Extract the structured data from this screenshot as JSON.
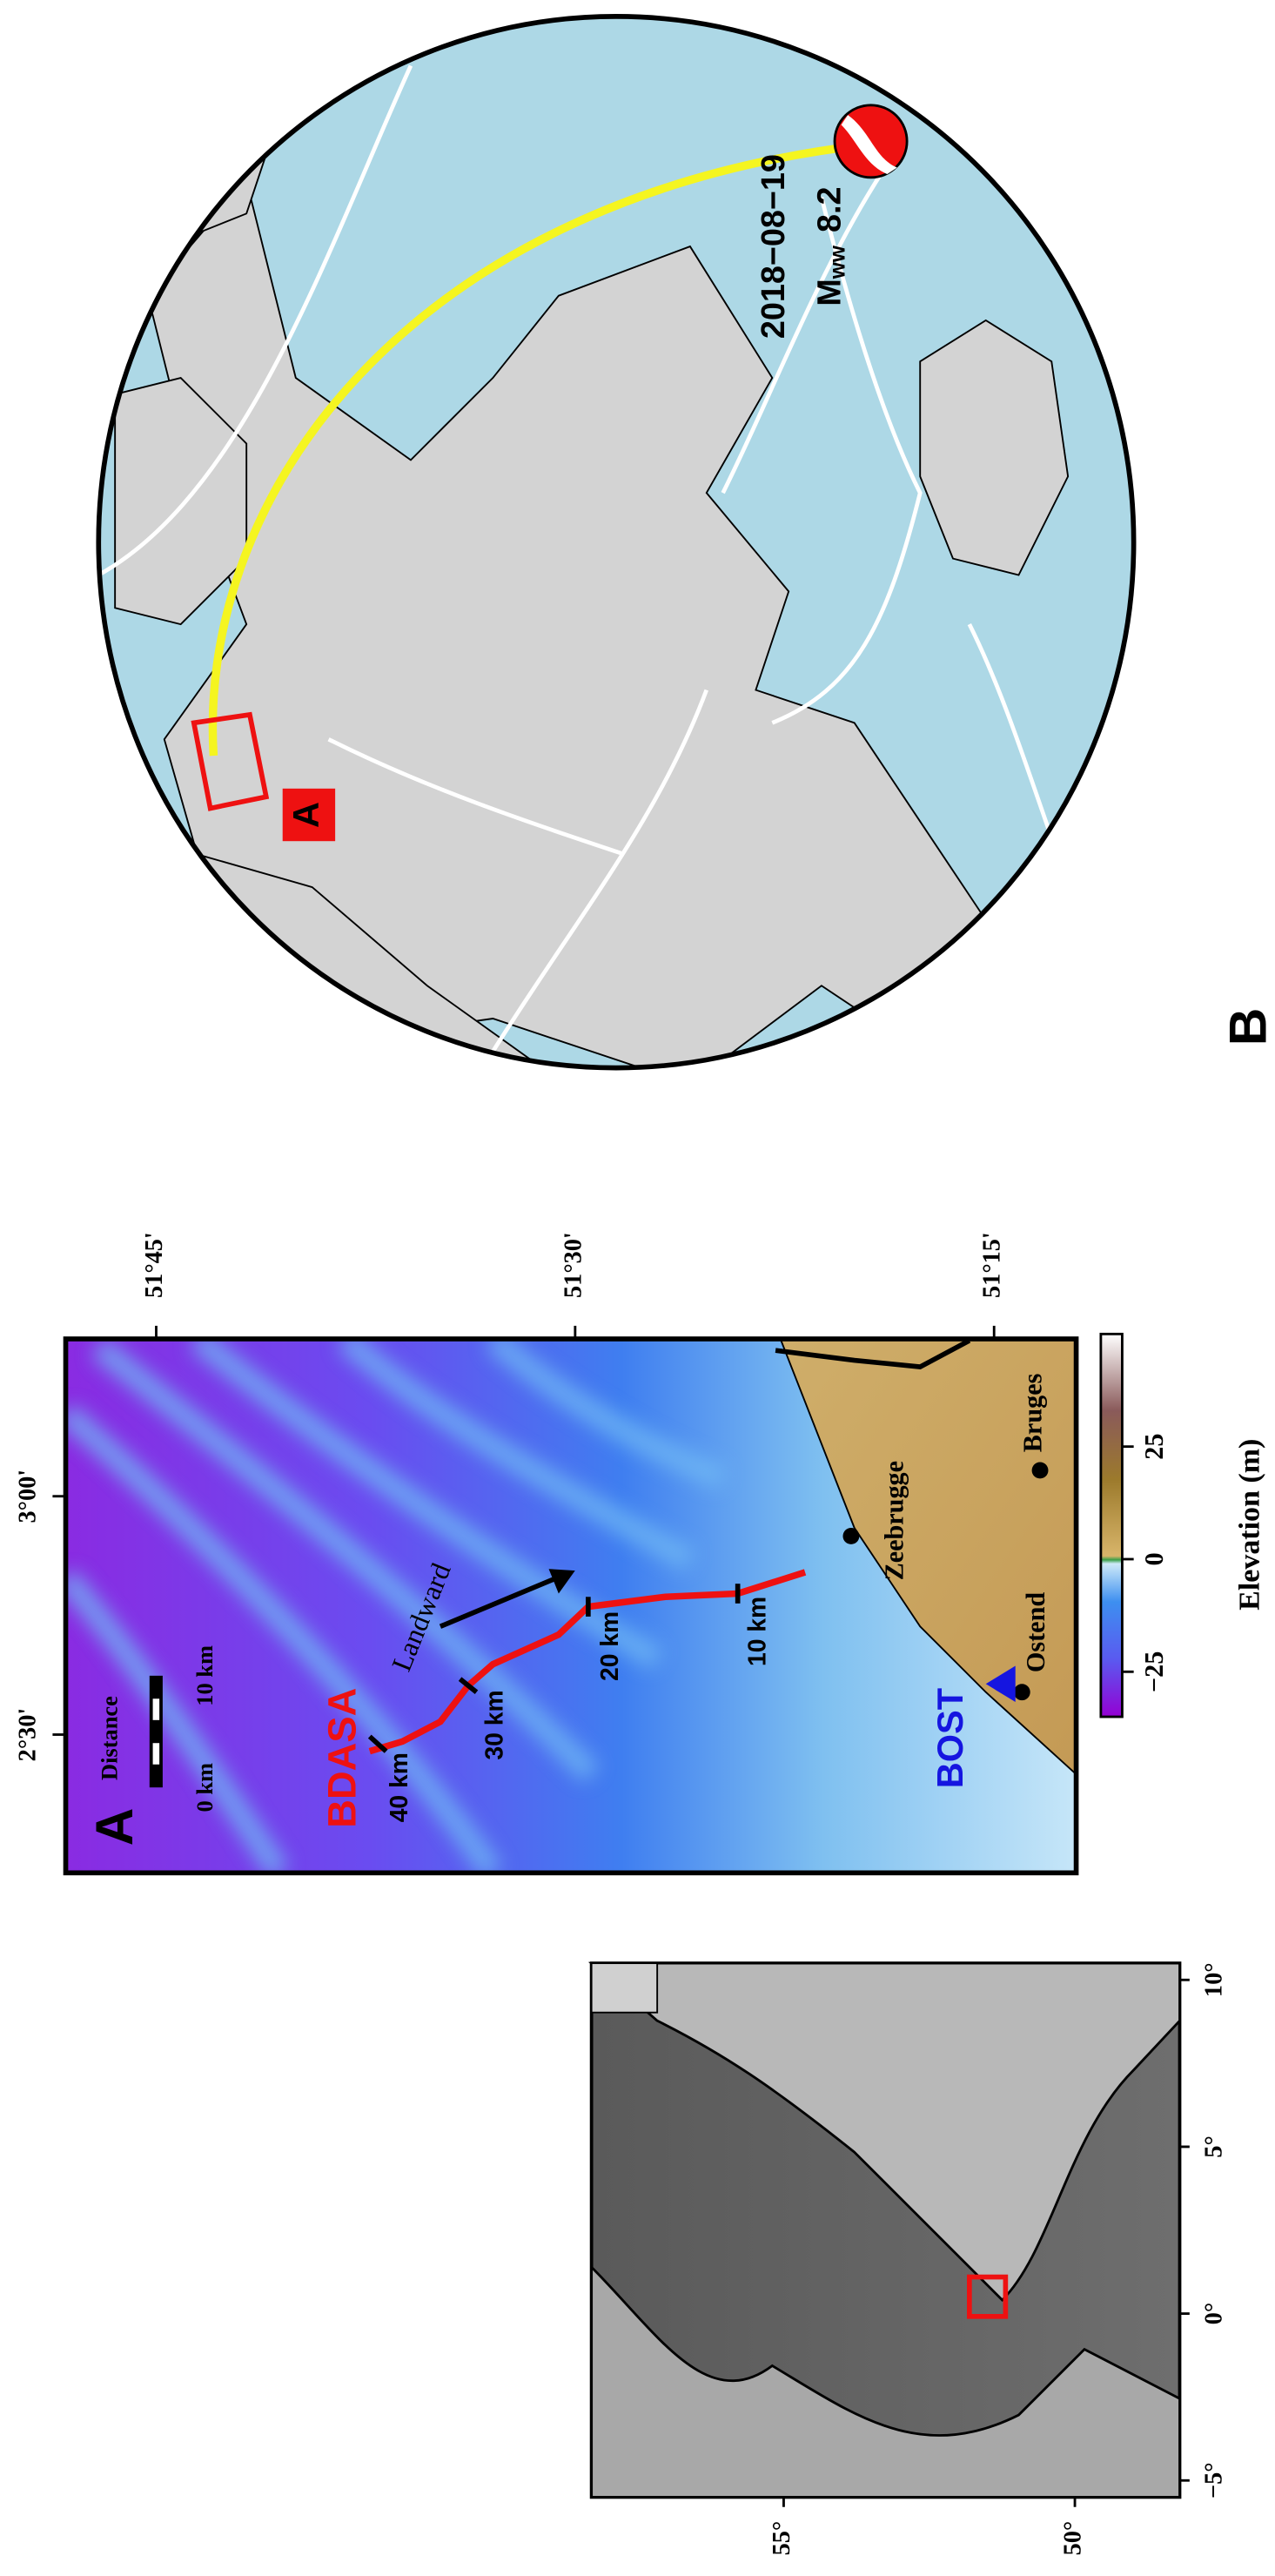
{
  "panel_a": {
    "label": "A",
    "lonlim": [
      2.21,
      3.33
    ],
    "latlim": [
      51.201,
      51.804
    ],
    "lon_ticks": [
      {
        "value": 2.5,
        "label": "2°30'"
      },
      {
        "value": 3,
        "label": "3°00'"
      }
    ],
    "lat_ticks": [
      {
        "value": 51.25,
        "label": "51°15'"
      },
      {
        "value": 51.5,
        "label": "51°30'"
      },
      {
        "value": 51.75,
        "label": "51°45'"
      }
    ],
    "scale_bar": {
      "title": "Distance",
      "labels": [
        "0 km",
        "10 km"
      ]
    },
    "cable": {
      "name": "BDASA",
      "markers": [
        "10 km",
        "20 km",
        "30 km",
        "40 km"
      ]
    },
    "arrow_label": "Landward",
    "places": [
      "Zeebrugge",
      "Bruges",
      "Ostend"
    ],
    "station": "BOST",
    "colorbar": {
      "title": "Elevation (m)",
      "lim": [
        -35,
        50
      ],
      "ticks": [
        {
          "value": -25,
          "label": "−25"
        },
        0,
        25
      ]
    },
    "inset": {
      "lonlim": [
        -5.5,
        10.5
      ],
      "latlim": [
        48.2,
        58.3
      ],
      "lon_ticks": [
        {
          "value": -5,
          "label": "−5°"
        },
        {
          "value": 0,
          "label": "0°"
        },
        {
          "value": 5,
          "label": "5°"
        },
        {
          "value": 10,
          "label": "10°"
        }
      ],
      "lat_ticks": [
        {
          "value": 50,
          "label": "50°"
        },
        {
          "value": 55,
          "label": "55°"
        }
      ]
    }
  },
  "panel_b": {
    "label": "B",
    "box_label": "A",
    "event_date": "2018−08−19",
    "magnitude_symbol": "M",
    "magnitude_type": "ww",
    "magnitude": 8.2
  }
}
